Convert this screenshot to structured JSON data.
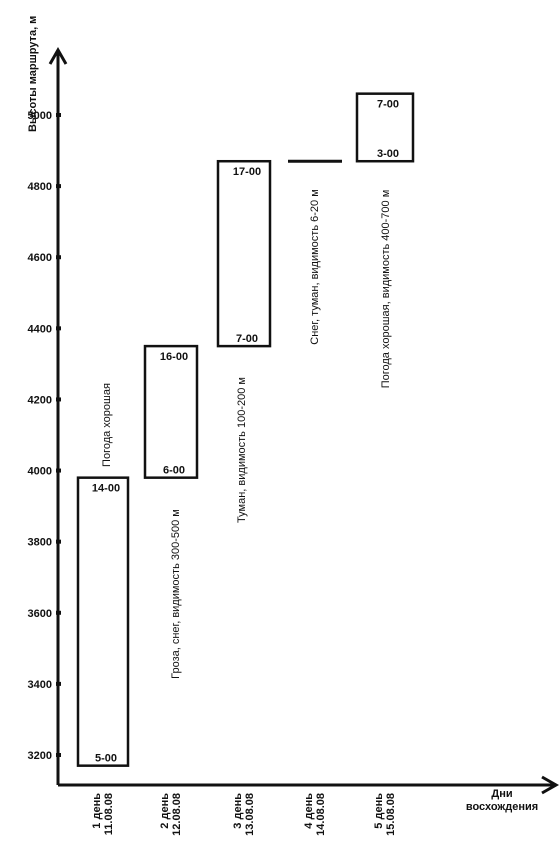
{
  "chart_data": {
    "type": "bar",
    "subtype": "floating-range",
    "ylabel": "Высоты маршрута, м",
    "xlabel": "Дни восхождения",
    "ylim": [
      3150,
      5150
    ],
    "yticks": [
      "3200",
      "3400",
      "3600",
      "3800",
      "4000",
      "4200",
      "4400",
      "4600",
      "4800",
      "5000"
    ],
    "grid": false,
    "categories": [
      "1 день 11.08.08",
      "2 день 12.08.08",
      "3 день 13.08.08",
      "4 день 14.08.08",
      "5 день 15.08.08"
    ],
    "days": [
      {
        "day": "1 день",
        "date": "11.08.08",
        "low": 3170,
        "high": 3980,
        "start_time": "5-00",
        "end_time": "14-00",
        "weather": "Погода хорошая"
      },
      {
        "day": "2 день",
        "date": "12.08.08",
        "low": 3980,
        "high": 4350,
        "start_time": "6-00",
        "end_time": "16-00",
        "weather": "Гроза, снег, видимость 300-500 м"
      },
      {
        "day": "3 день",
        "date": "13.08.08",
        "low": 4350,
        "high": 4870,
        "start_time": "7-00",
        "end_time": "17-00",
        "weather": "Туман, видимость 100-200 м"
      },
      {
        "day": "4 день",
        "date": "14.08.08",
        "low": 4870,
        "high": 4870,
        "start_time": "",
        "end_time": "",
        "weather": "Снег, туман, видимость 6-20 м"
      },
      {
        "day": "5 день",
        "date": "15.08.08",
        "low": 4870,
        "high": 5060,
        "start_time": "3-00",
        "end_time": "7-00",
        "weather": "Погода хорошая, видимость 400-700 м"
      }
    ]
  }
}
